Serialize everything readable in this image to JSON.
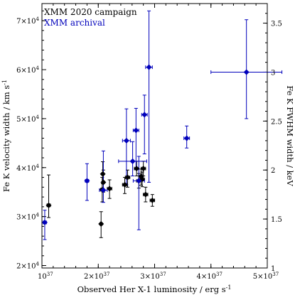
{
  "chart_data": {
    "type": "scatter",
    "xlabel": "Observed Her X-1 luminosity / erg s",
    "xlabel_sup": "-1",
    "ylabel": "Fe K velocity width / km s",
    "ylabel_sup": "-1",
    "y2label": "Fe K FWHM width / keV",
    "xlim": [
      1e+37,
      5e+37
    ],
    "ylim": [
      19500,
      73500
    ],
    "y2lim": [
      1,
      3.7
    ],
    "legend_position": "top-left",
    "x_ticks": [
      {
        "value": 1e+37,
        "mantissa": "10",
        "exp": "37"
      },
      {
        "value": 2e+37,
        "mantissa": "2×10",
        "exp": "37"
      },
      {
        "value": 3e+37,
        "mantissa": "3×10",
        "exp": "37"
      },
      {
        "value": 4e+37,
        "mantissa": "4×10",
        "exp": "37"
      },
      {
        "value": 5e+37,
        "mantissa": "5×10",
        "exp": "37"
      }
    ],
    "y_ticks": [
      {
        "value": 20000,
        "mantissa": "2×10",
        "exp": "4"
      },
      {
        "value": 30000,
        "mantissa": "3×10",
        "exp": "4"
      },
      {
        "value": 40000,
        "mantissa": "4×10",
        "exp": "4"
      },
      {
        "value": 50000,
        "mantissa": "5×10",
        "exp": "4"
      },
      {
        "value": 60000,
        "mantissa": "6×10",
        "exp": "4"
      },
      {
        "value": 70000,
        "mantissa": "7×10",
        "exp": "4"
      }
    ],
    "y2_ticks": [
      "1",
      "1.5",
      "2",
      "2.5",
      "3",
      "3.5"
    ],
    "series": [
      {
        "name": "XMM 2020 campaign",
        "color": "#000000",
        "points": [
          {
            "x": 1.12e+37,
            "y": 32300,
            "xerr": 3e+35,
            "yerr_lo": 2500,
            "yerr_hi": 6200
          },
          {
            "x": 2.05e+37,
            "y": 28500,
            "xerr": 2e+35,
            "yerr_lo": 2800,
            "yerr_hi": 2500
          },
          {
            "x": 2.08e+37,
            "y": 38700,
            "xerr": 2e+35,
            "yerr_lo": 2000,
            "yerr_hi": 2500
          },
          {
            "x": 2.09e+37,
            "y": 37000,
            "xerr": 2e+35,
            "yerr_lo": 2000,
            "yerr_hi": 2500
          },
          {
            "x": 2.07e+37,
            "y": 35500,
            "xerr": 3e+35,
            "yerr_lo": 2500,
            "yerr_hi": 2500
          },
          {
            "x": 2.2e+37,
            "y": 35700,
            "xerr": 4e+35,
            "yerr_lo": 2000,
            "yerr_hi": 1800
          },
          {
            "x": 2.47e+37,
            "y": 36500,
            "xerr": 4e+35,
            "yerr_lo": 1800,
            "yerr_hi": 1500
          },
          {
            "x": 2.52e+37,
            "y": 38000,
            "xerr": 4e+35,
            "yerr_lo": 2000,
            "yerr_hi": 1500
          },
          {
            "x": 2.68e+37,
            "y": 39800,
            "xerr": 4e+35,
            "yerr_lo": 1500,
            "yerr_hi": 1500
          },
          {
            "x": 2.72e+37,
            "y": 37300,
            "xerr": 4e+35,
            "yerr_lo": 1500,
            "yerr_hi": 1500
          },
          {
            "x": 2.76e+37,
            "y": 38200,
            "xerr": 4e+35,
            "yerr_lo": 1800,
            "yerr_hi": 1500
          },
          {
            "x": 2.78e+37,
            "y": 37600,
            "xerr": 4e+35,
            "yerr_lo": 1500,
            "yerr_hi": 1500
          },
          {
            "x": 2.8e+37,
            "y": 39800,
            "xerr": 4e+35,
            "yerr_lo": 1500,
            "yerr_hi": 1500
          },
          {
            "x": 2.84e+37,
            "y": 34500,
            "xerr": 4e+35,
            "yerr_lo": 1500,
            "yerr_hi": 1500
          },
          {
            "x": 2.96e+37,
            "y": 33300,
            "xerr": 4e+35,
            "yerr_lo": 1200,
            "yerr_hi": 1200
          }
        ]
      },
      {
        "name": "XMM archival",
        "color": "#0000bb",
        "points": [
          {
            "x": 1.05e+37,
            "y": 28800,
            "xerr": 3e+35,
            "yerr_lo": 3500,
            "yerr_hi": 2500
          },
          {
            "x": 1.8e+37,
            "y": 37300,
            "xerr": 3e+35,
            "yerr_lo": 4000,
            "yerr_hi": 3500
          },
          {
            "x": 2.09e+37,
            "y": 35400,
            "xerr": 7e+35,
            "yerr_lo": 2500,
            "yerr_hi": 8000
          },
          {
            "x": 2.5e+37,
            "y": 45500,
            "xerr": 7e+35,
            "yerr_lo": 9000,
            "yerr_hi": 6500
          },
          {
            "x": 2.61e+37,
            "y": 41300,
            "xerr": 2.5e+36,
            "yerr_lo": 3000,
            "yerr_hi": 4000
          },
          {
            "x": 2.67e+37,
            "y": 47600,
            "xerr": 5e+35,
            "yerr_lo": 8000,
            "yerr_hi": 4500
          },
          {
            "x": 2.72e+37,
            "y": 37300,
            "xerr": 1e+36,
            "yerr_lo": 10000,
            "yerr_hi": 5000
          },
          {
            "x": 2.82e+37,
            "y": 50800,
            "xerr": 5e+35,
            "yerr_lo": 8000,
            "yerr_hi": 4000
          },
          {
            "x": 2.9e+37,
            "y": 60500,
            "xerr": 6e+35,
            "yerr_lo": 23500,
            "yerr_hi": 11500
          },
          {
            "x": 3.57e+37,
            "y": 46000,
            "xerr": 5e+35,
            "yerr_lo": 2000,
            "yerr_hi": 2500
          },
          {
            "x": 4.63e+37,
            "y": 59500,
            "xerr": 6.3e+36,
            "yerr_lo": 9500,
            "yerr_hi": 10700
          }
        ]
      }
    ]
  }
}
